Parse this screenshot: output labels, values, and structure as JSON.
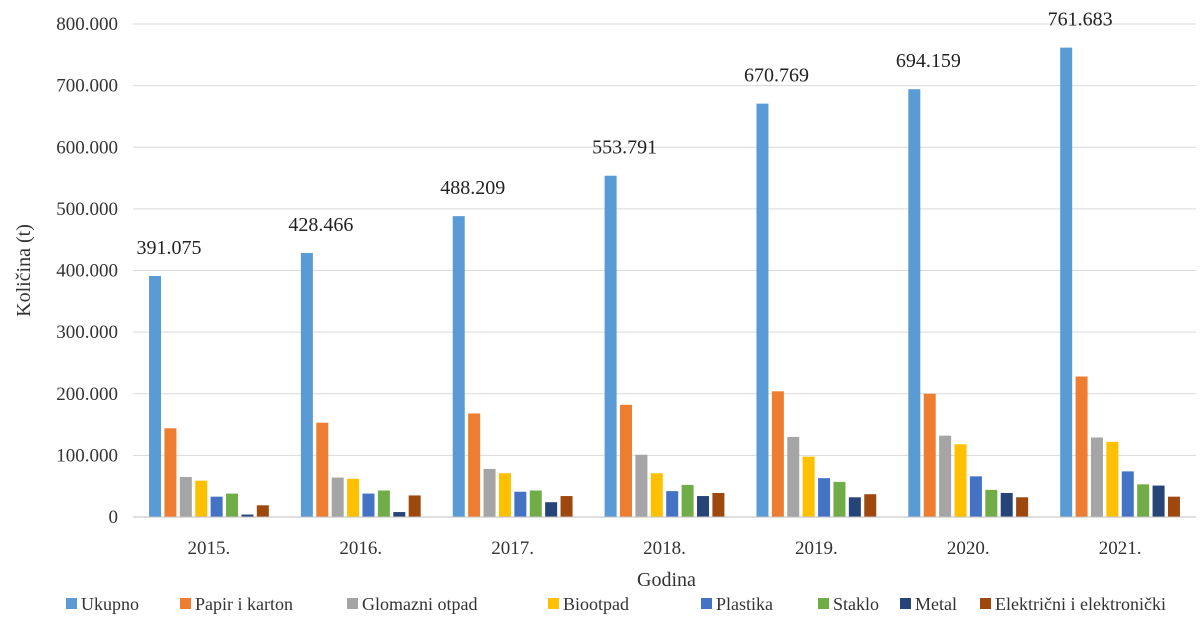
{
  "chart_data": {
    "type": "bar",
    "categories": [
      "2015.",
      "2016.",
      "2017.",
      "2018.",
      "2019.",
      "2020.",
      "2021."
    ],
    "xlabel": "Godina",
    "ylabel": "Količina (t)",
    "ylim": [
      0,
      800000
    ],
    "yticks": [
      0,
      100000,
      200000,
      300000,
      400000,
      500000,
      600000,
      700000,
      800000
    ],
    "ytick_labels": [
      "0",
      "100.000",
      "200.000",
      "300.000",
      "400.000",
      "500.000",
      "600.000",
      "700.000",
      "800.000"
    ],
    "grid": true,
    "legend_position": "bottom",
    "series": [
      {
        "name": "Ukupno",
        "color": "#5b9bd5",
        "values": [
          391075,
          428466,
          488209,
          553791,
          670769,
          694159,
          761683
        ]
      },
      {
        "name": "Papir i karton",
        "color": "#ed7d31",
        "values": [
          144000,
          153000,
          168000,
          182000,
          204000,
          200000,
          228000
        ]
      },
      {
        "name": "Glomazni otpad",
        "color": "#a5a5a5",
        "values": [
          65000,
          64000,
          78000,
          101000,
          130000,
          132000,
          129000
        ]
      },
      {
        "name": "Biootpad",
        "color": "#ffc000",
        "values": [
          59000,
          62000,
          71000,
          71000,
          98000,
          118000,
          122000
        ]
      },
      {
        "name": "Plastika",
        "color": "#4472c4",
        "values": [
          33000,
          38000,
          41000,
          42000,
          63000,
          66000,
          74000
        ]
      },
      {
        "name": "Staklo",
        "color": "#70ad47",
        "values": [
          38000,
          43000,
          43000,
          52000,
          57000,
          44000,
          53000
        ]
      },
      {
        "name": "Metal",
        "color": "#264478",
        "values": [
          4000,
          8000,
          24000,
          34000,
          32000,
          39000,
          51000
        ]
      },
      {
        "name": "Električni i elektronički",
        "color": "#9e480e",
        "values": [
          19000,
          35000,
          34000,
          39000,
          37000,
          32000,
          33000
        ]
      }
    ],
    "data_labels": [
      "391.075",
      "428.466",
      "488.209",
      "553.791",
      "670.769",
      "694.159",
      "761.683"
    ]
  }
}
